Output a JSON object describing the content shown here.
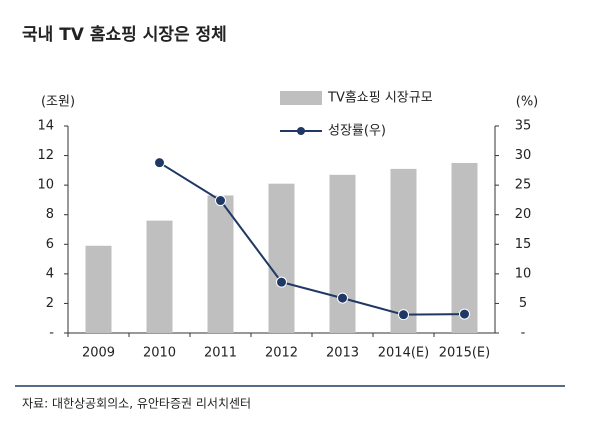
{
  "title": "국내 TV 홈쇼핑 시장은 정체",
  "source": "자료: 대한상공회의소, 유안타증권 리서치센터",
  "chart_data": {
    "type": "bar-line",
    "y_label": "(조원)",
    "y2_label": "(%)",
    "categories": [
      "2009",
      "2010",
      "2011",
      "2012",
      "2013",
      "2014(E)",
      "2015(E)"
    ],
    "series": [
      {
        "name": "TV홈쇼핑 시장규모",
        "type": "bar",
        "color": "#bfbfbf",
        "values": [
          5.9,
          7.6,
          9.3,
          10.1,
          10.7,
          11.1,
          11.5
        ]
      },
      {
        "name": "성장률(우)",
        "type": "line",
        "axis": "y2",
        "color": "#1f3864",
        "values": [
          null,
          28.8,
          22.4,
          8.6,
          5.9,
          3.1,
          3.2
        ]
      }
    ],
    "ylim": [
      0,
      14
    ],
    "yticks": [
      {
        "value": 0,
        "label": "-"
      },
      2,
      4,
      6,
      8,
      10,
      12,
      14
    ],
    "y2lim": [
      0,
      35
    ],
    "y2ticks": [
      {
        "value": 0,
        "label": "-"
      },
      5,
      10,
      15,
      20,
      25,
      30,
      35
    ],
    "grid": false
  }
}
